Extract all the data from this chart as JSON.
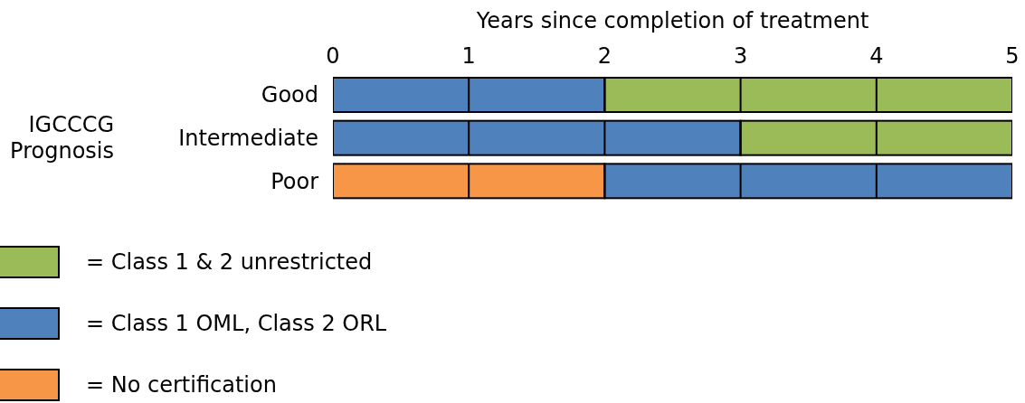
{
  "chart_data": {
    "type": "bar",
    "orientation": "horizontal",
    "stacked": true,
    "xlabel": "Years since completion of treatment",
    "ylabel": "IGCCCG Prognosis",
    "categories": [
      "Good",
      "Intermediate",
      "Poor"
    ],
    "series": [
      {
        "name": "= No certification",
        "color": "#f79646",
        "values": [
          0,
          0,
          2
        ]
      },
      {
        "name": "= Class 1 OML, Class 2 ORL",
        "color": "#4f81bd",
        "values": [
          2,
          3,
          3
        ]
      },
      {
        "name": "= Class 1 & 2 unrestricted",
        "color": "#9bbb59",
        "values": [
          3,
          2,
          0
        ]
      }
    ],
    "xlim": [
      0,
      5
    ],
    "xticks": [
      0,
      1,
      2,
      3,
      4,
      5
    ],
    "grid": "x",
    "legend": "bottom left"
  }
}
